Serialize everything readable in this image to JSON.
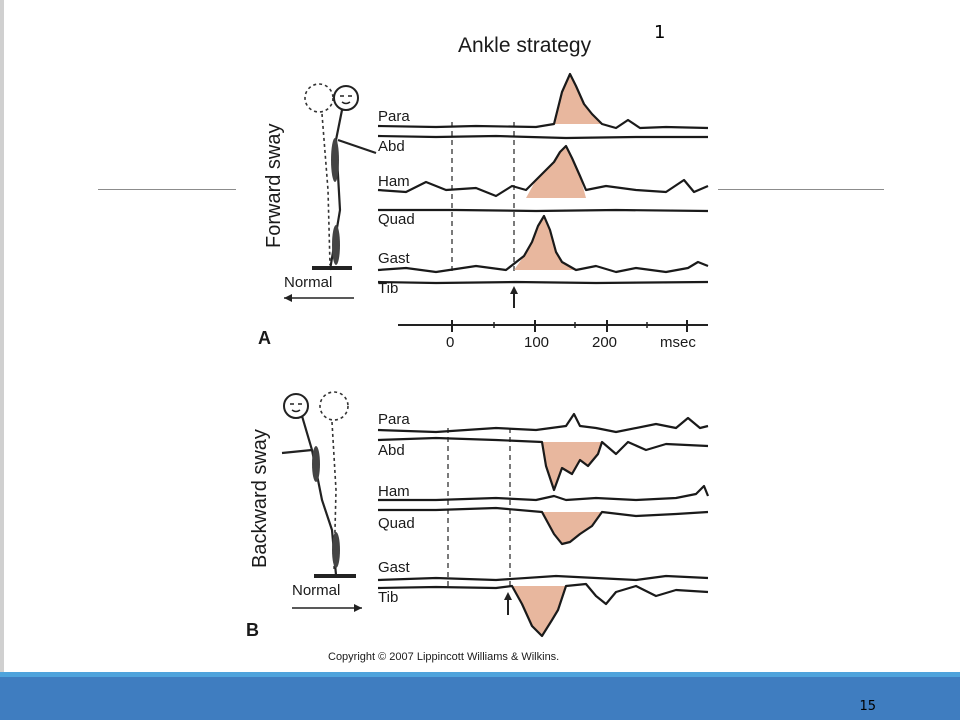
{
  "slide": {
    "title_marker": "1",
    "page_number": "15"
  },
  "figure": {
    "title": "Ankle strategy",
    "copyright": "Copyright © 2007 Lippincott Williams & Wilkins.",
    "panel_a": {
      "label": "A",
      "sway_label": "Forward sway",
      "normal_label": "Normal",
      "muscles": [
        "Para",
        "Abd",
        "Ham",
        "Quad",
        "Gast",
        "Tib"
      ]
    },
    "panel_b": {
      "label": "B",
      "sway_label": "Backward sway",
      "normal_label": "Normal",
      "muscles": [
        "Para",
        "Abd",
        "Ham",
        "Quad",
        "Gast",
        "Tib"
      ]
    },
    "time_axis": {
      "ticks": [
        "0",
        "100",
        "200"
      ],
      "unit": "msec"
    }
  }
}
